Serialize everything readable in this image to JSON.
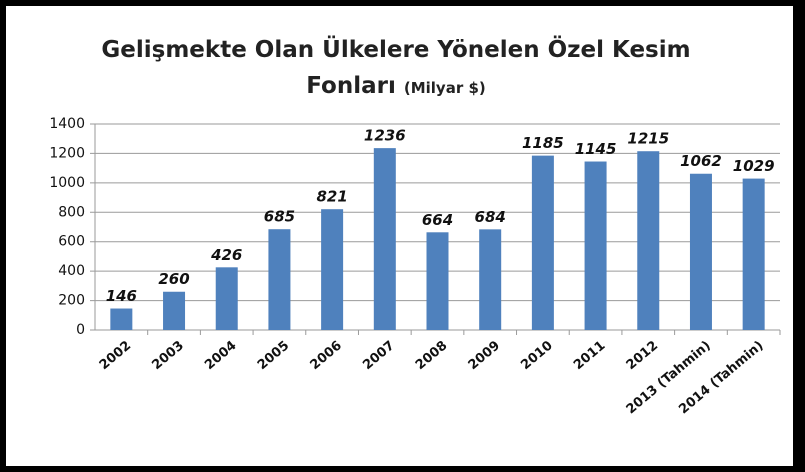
{
  "chart_data": {
    "type": "bar",
    "title": "Gelişmekte Olan Ülkelere Yönelen Özel Kesim Fonları",
    "subtitle": "(Milyar $)",
    "categories": [
      "2002",
      "2003",
      "2004",
      "2005",
      "2006",
      "2007",
      "2008",
      "2009",
      "2010",
      "2011",
      "2012",
      "2013 (Tahmin)",
      "2014 (Tahmin)"
    ],
    "values": [
      146,
      260,
      426,
      685,
      821,
      1236,
      664,
      684,
      1185,
      1145,
      1215,
      1062,
      1029
    ],
    "color": "#4f81bd",
    "ylim": [
      0,
      1400
    ],
    "yticks": [
      0,
      200,
      400,
      600,
      800,
      1000,
      1200,
      1400
    ],
    "grid": true
  }
}
